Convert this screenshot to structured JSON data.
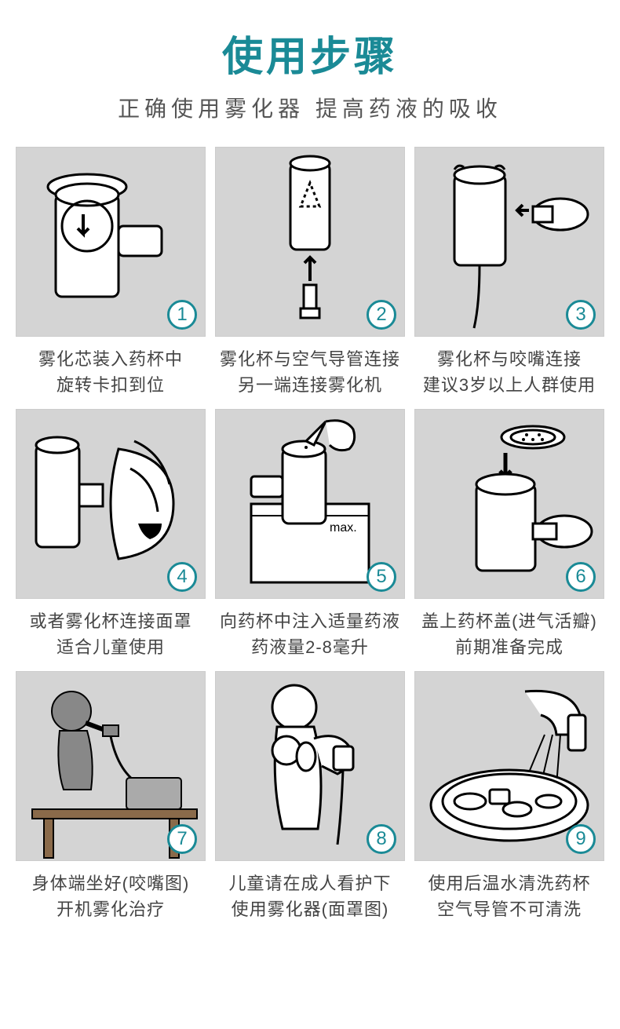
{
  "header": {
    "title": "使用步骤",
    "subtitle": "正确使用雾化器 提高药液的吸收",
    "title_color": "#1a8a96",
    "subtitle_color": "#555555"
  },
  "style": {
    "cell_bg": "#d4d4d4",
    "accent_color": "#1a8a96",
    "caption_color": "#444444",
    "grid_columns": 3,
    "grid_gap": 12
  },
  "steps": [
    {
      "num": 1,
      "caption": "雾化芯装入药杯中\n旋转卡扣到位",
      "illus": "cup-open"
    },
    {
      "num": 2,
      "caption": "雾化杯与空气导管连接\n另一端连接雾化机",
      "illus": "tube-connect"
    },
    {
      "num": 3,
      "caption": "雾化杯与咬嘴连接\n建议3岁以上人群使用",
      "illus": "mouthpiece"
    },
    {
      "num": 4,
      "caption": "或者雾化杯连接面罩\n适合儿童使用",
      "illus": "mask"
    },
    {
      "num": 5,
      "caption": "向药杯中注入适量药液\n药液量2-8毫升",
      "illus": "fill",
      "label": "max."
    },
    {
      "num": 6,
      "caption": "盖上药杯盖(进气活瓣)\n前期准备完成",
      "illus": "cap"
    },
    {
      "num": 7,
      "caption": "身体端坐好(咬嘴图)\n开机雾化治疗",
      "illus": "adult"
    },
    {
      "num": 8,
      "caption": "儿童请在成人看护下\n使用雾化器(面罩图)",
      "illus": "child"
    },
    {
      "num": 9,
      "caption": "使用后温水清洗药杯\n空气导管不可清洗",
      "illus": "wash"
    }
  ]
}
